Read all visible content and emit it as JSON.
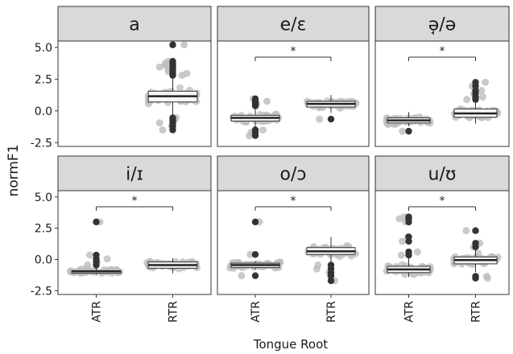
{
  "chart_data": {
    "type": "box",
    "xlabel": "Tongue Root",
    "ylabel": "normF1",
    "ylim": [
      -2.8,
      5.5
    ],
    "yticks": [
      5.0,
      2.5,
      0.0,
      -2.5
    ],
    "ytick_labels": [
      "5.0",
      "2.5",
      "0.0",
      "-2.5"
    ],
    "categories": [
      "ATR",
      "RTR"
    ],
    "significance_marker": "*",
    "facets": [
      {
        "label": "a",
        "boxes": [
          null,
          {
            "category": "RTR",
            "q1": 0.7,
            "median": 1.15,
            "q3": 1.55,
            "whisker_low": -0.3,
            "whisker_high": 2.7,
            "outliers": [
              5.2,
              3.9,
              3.75,
              3.6,
              3.45,
              3.3,
              3.1,
              2.95,
              2.8,
              -0.55,
              -0.75,
              -0.95,
              -1.2,
              -1.5
            ]
          }
        ],
        "significance": false
      },
      {
        "label": "e/ɛ",
        "boxes": [
          {
            "category": "ATR",
            "q1": -0.8,
            "median": -0.55,
            "q3": -0.35,
            "whisker_low": -1.35,
            "whisker_high": 0.3,
            "outliers": [
              0.95,
              0.75,
              0.55,
              0.4,
              -1.5,
              -1.7,
              -1.95
            ]
          },
          {
            "category": "RTR",
            "q1": 0.3,
            "median": 0.55,
            "q3": 0.75,
            "whisker_low": -0.15,
            "whisker_high": 1.25,
            "outliers": [
              -0.65
            ]
          }
        ],
        "significance": true
      },
      {
        "label": "ə̘/ə",
        "boxes": [
          {
            "category": "ATR",
            "q1": -0.95,
            "median": -0.75,
            "q3": -0.55,
            "whisker_low": -1.2,
            "whisker_high": -0.1,
            "outliers": [
              -1.6
            ]
          },
          {
            "category": "RTR",
            "q1": -0.5,
            "median": -0.2,
            "q3": 0.15,
            "whisker_low": -1.0,
            "whisker_high": 0.7,
            "outliers": [
              2.25,
              1.95,
              1.6,
              1.35,
              1.1,
              0.9
            ]
          }
        ],
        "significance": true
      },
      {
        "label": "i/ɪ",
        "boxes": [
          {
            "category": "ATR",
            "q1": -1.1,
            "median": -0.95,
            "q3": -0.9,
            "whisker_low": -1.2,
            "whisker_high": -0.7,
            "outliers": [
              3.0,
              0.35,
              0.05,
              -0.2,
              -0.45
            ]
          },
          {
            "category": "RTR",
            "q1": -0.7,
            "median": -0.45,
            "q3": -0.2,
            "whisker_low": -1.1,
            "whisker_high": 0.1,
            "outliers": []
          }
        ],
        "significance": true
      },
      {
        "label": "o/ɔ",
        "boxes": [
          {
            "category": "ATR",
            "q1": -0.65,
            "median": -0.45,
            "q3": -0.3,
            "whisker_low": -0.8,
            "whisker_high": -0.15,
            "outliers": [
              3.0,
              0.4,
              -1.3
            ]
          },
          {
            "category": "RTR",
            "q1": 0.4,
            "median": 0.65,
            "q3": 0.95,
            "whisker_low": -0.2,
            "whisker_high": 1.8,
            "outliers": [
              -0.45,
              -0.75,
              -1.05,
              -1.3,
              -1.7
            ]
          }
        ],
        "significance": true
      },
      {
        "label": "u/ʊ",
        "boxes": [
          {
            "category": "ATR",
            "q1": -1.05,
            "median": -0.8,
            "q3": -0.55,
            "whisker_low": -1.4,
            "whisker_high": 0.1,
            "outliers": [
              3.4,
              3.25,
              3.0,
              1.8,
              1.45,
              0.6,
              0.35
            ]
          },
          {
            "category": "RTR",
            "q1": -0.35,
            "median": -0.05,
            "q3": 0.2,
            "whisker_low": -1.0,
            "whisker_high": 0.8,
            "outliers": [
              2.3,
              1.3,
              1.0,
              -1.35,
              -1.5
            ]
          }
        ],
        "significance": true
      }
    ]
  }
}
